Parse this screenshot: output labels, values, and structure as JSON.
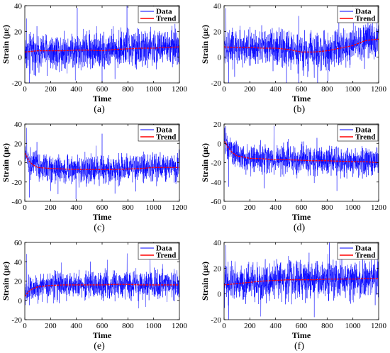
{
  "colors": {
    "data": "#0000ff",
    "trend": "#ff0000",
    "axis": "#000000",
    "background": "#ffffff"
  },
  "chart_data": [
    {
      "type": "line",
      "caption": "(a)",
      "xlabel": "Time",
      "ylabel": "Strain (με)",
      "xlim": [
        0,
        1200
      ],
      "ylim": [
        -20,
        40
      ],
      "xticks": [
        0,
        200,
        400,
        600,
        800,
        1000,
        1200
      ],
      "yticks": [
        -20,
        0,
        20,
        40
      ],
      "legend_position": "top-right",
      "grid": false,
      "series": [
        {
          "name": "Data",
          "style": "noisy",
          "mean": 5,
          "noise_sd": 7,
          "spike_top": 30,
          "spike_bottom": -21
        },
        {
          "name": "Trend",
          "x": [
            0,
            100,
            200,
            300,
            400,
            500,
            600,
            700,
            800,
            900,
            1000,
            1100,
            1200
          ],
          "y": [
            4,
            5,
            5,
            5,
            5.5,
            5.5,
            5,
            6,
            6.5,
            7,
            7,
            7.5,
            8
          ]
        }
      ]
    },
    {
      "type": "line",
      "caption": "(b)",
      "xlabel": "Time",
      "ylabel": "Strain (με)",
      "xlim": [
        0,
        1200
      ],
      "ylim": [
        -20,
        40
      ],
      "xticks": [
        0,
        200,
        400,
        600,
        800,
        1000,
        1200
      ],
      "yticks": [
        -20,
        0,
        20,
        40
      ],
      "legend_position": "top-right",
      "grid": false,
      "series": [
        {
          "name": "Data",
          "style": "noisy",
          "mean": 7,
          "noise_sd": 7,
          "spike_top": 38,
          "spike_bottom": -20
        },
        {
          "name": "Trend",
          "x": [
            0,
            100,
            200,
            300,
            400,
            500,
            600,
            700,
            800,
            900,
            1000,
            1100,
            1200
          ],
          "y": [
            8,
            7.5,
            7.5,
            7,
            7,
            6,
            4,
            4,
            5,
            7,
            9,
            13,
            14
          ]
        }
      ]
    },
    {
      "type": "line",
      "caption": "(c)",
      "xlabel": "Time",
      "ylabel": "Strain (με)",
      "xlim": [
        0,
        1200
      ],
      "ylim": [
        -40,
        40
      ],
      "xticks": [
        0,
        200,
        400,
        600,
        800,
        1000,
        1200
      ],
      "yticks": [
        -40,
        -20,
        0,
        20,
        40
      ],
      "legend_position": "top-right",
      "grid": false,
      "series": [
        {
          "name": "Data",
          "style": "noisy",
          "mean": -6,
          "noise_sd": 7,
          "spike_top": 36,
          "spike_bottom": -36
        },
        {
          "name": "Trend",
          "x": [
            0,
            10,
            30,
            60,
            100,
            200,
            300,
            400,
            500,
            600,
            700,
            800,
            900,
            1000,
            1100,
            1200
          ],
          "y": [
            10,
            8,
            2,
            -2,
            -5,
            -6,
            -6.5,
            -7,
            -7,
            -7,
            -7,
            -6.5,
            -6,
            -5,
            -5,
            -5
          ]
        }
      ]
    },
    {
      "type": "line",
      "caption": "(d)",
      "xlabel": "Time",
      "ylabel": "Strain (με)",
      "xlim": [
        0,
        1200
      ],
      "ylim": [
        -60,
        20
      ],
      "xticks": [
        0,
        200,
        400,
        600,
        800,
        1000,
        1200
      ],
      "yticks": [
        -60,
        -40,
        -20,
        0,
        20
      ],
      "legend_position": "top-right",
      "grid": false,
      "series": [
        {
          "name": "Data",
          "style": "noisy",
          "mean": -16,
          "noise_sd": 7,
          "spike_top": 8,
          "spike_bottom": -45
        },
        {
          "name": "Trend",
          "x": [
            0,
            10,
            30,
            60,
            100,
            200,
            300,
            400,
            500,
            600,
            700,
            800,
            900,
            1000,
            1100,
            1200
          ],
          "y": [
            2,
            1,
            -4,
            -9,
            -13,
            -15.5,
            -16,
            -17,
            -17,
            -17.5,
            -18,
            -18,
            -18.5,
            -19,
            -19,
            -20
          ]
        }
      ]
    },
    {
      "type": "line",
      "caption": "(e)",
      "xlabel": "Time",
      "ylabel": "Strain (με)",
      "xlim": [
        0,
        1200
      ],
      "ylim": [
        -20,
        60
      ],
      "xticks": [
        0,
        200,
        400,
        600,
        800,
        1000,
        1200
      ],
      "yticks": [
        -20,
        0,
        20,
        40,
        60
      ],
      "legend_position": "top-right",
      "grid": false,
      "series": [
        {
          "name": "Data",
          "style": "noisy",
          "mean": 15,
          "noise_sd": 7,
          "spike_top": 48,
          "spike_bottom": -5
        },
        {
          "name": "Trend",
          "x": [
            0,
            10,
            30,
            60,
            100,
            200,
            300,
            400,
            500,
            600,
            700,
            800,
            900,
            1000,
            1100,
            1200
          ],
          "y": [
            4,
            6,
            9,
            12,
            14,
            15.5,
            16,
            16,
            16,
            16,
            16.5,
            16.5,
            16,
            16,
            16,
            16
          ]
        }
      ]
    },
    {
      "type": "line",
      "caption": "(f)",
      "xlabel": "Time",
      "ylabel": "Strain (με)",
      "xlim": [
        0,
        1200
      ],
      "ylim": [
        -20,
        40
      ],
      "xticks": [
        0,
        200,
        400,
        600,
        800,
        1000,
        1200
      ],
      "yticks": [
        -20,
        0,
        20,
        40
      ],
      "legend_position": "top-right",
      "grid": false,
      "series": [
        {
          "name": "Data",
          "style": "noisy",
          "mean": 10,
          "noise_sd": 7,
          "spike_top": 38,
          "spike_bottom": -22
        },
        {
          "name": "Trend",
          "x": [
            0,
            100,
            200,
            300,
            400,
            500,
            600,
            700,
            800,
            900,
            1000,
            1100,
            1200
          ],
          "y": [
            7,
            8,
            9,
            10,
            10.5,
            11,
            11,
            11,
            11.5,
            11.5,
            11.5,
            12,
            12
          ]
        }
      ]
    }
  ]
}
